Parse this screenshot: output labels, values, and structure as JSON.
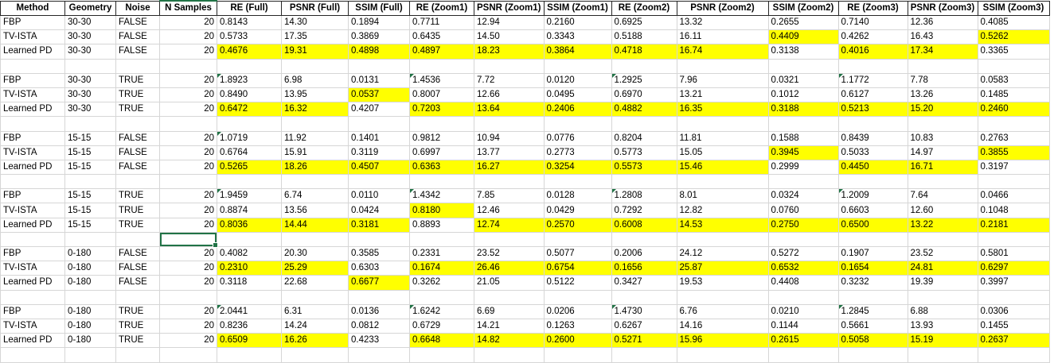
{
  "colors": {
    "highlight": "#FFFF00",
    "selection_green": "#217346",
    "flag_green": "#217346",
    "grid_line": "#D6D6D6",
    "header_border": "#262626"
  },
  "table": {
    "columns": [
      "Method",
      "Geometry",
      "Noise",
      "N Samples",
      "RE (Full)",
      "PSNR (Full)",
      "SSIM (Full)",
      "RE (Zoom1)",
      "PSNR (Zoom1)",
      "SSIM (Zoom1)",
      "RE (Zoom2)",
      "PSNR (Zoom2)",
      "SSIM (Zoom2)",
      "RE (Zoom3)",
      "PSNR (Zoom3)",
      "SSIM (Zoom3)"
    ],
    "header_accent_column": 3,
    "rows": [
      {
        "type": "data",
        "method": "FBP",
        "geometry": "30-30",
        "noise": "FALSE",
        "n_samples": "20",
        "values": [
          "0.8143",
          "14.30",
          "0.1894",
          "0.7711",
          "12.94",
          "0.2160",
          "0.6925",
          "13.32",
          "0.2655",
          "0.7140",
          "12.36",
          "0.4085"
        ],
        "highlights": [],
        "flags": []
      },
      {
        "type": "data",
        "method": "TV-ISTA",
        "geometry": "30-30",
        "noise": "FALSE",
        "n_samples": "20",
        "values": [
          "0.5733",
          "17.35",
          "0.3869",
          "0.6435",
          "14.50",
          "0.3343",
          "0.5188",
          "16.11",
          "0.4409",
          "0.4262",
          "16.43",
          "0.5262"
        ],
        "highlights": [
          8,
          11
        ],
        "flags": []
      },
      {
        "type": "data",
        "method": "Learned PD",
        "geometry": "30-30",
        "noise": "FALSE",
        "n_samples": "20",
        "values": [
          "0.4676",
          "19.31",
          "0.4898",
          "0.4897",
          "18.23",
          "0.3864",
          "0.4718",
          "16.74",
          "0.3138",
          "0.4016",
          "17.34",
          "0.3365"
        ],
        "highlights": [
          0,
          1,
          2,
          3,
          4,
          5,
          6,
          7,
          9,
          10
        ],
        "flags": []
      },
      {
        "type": "blank"
      },
      {
        "type": "data",
        "method": "FBP",
        "geometry": "30-30",
        "noise": "TRUE",
        "n_samples": "20",
        "values": [
          "1.8923",
          "6.98",
          "0.0131",
          "1.4536",
          "7.72",
          "0.0120",
          "1.2925",
          "7.96",
          "0.0321",
          "1.1772",
          "7.78",
          "0.0583"
        ],
        "highlights": [],
        "flags": [
          0,
          3,
          6,
          9
        ]
      },
      {
        "type": "data",
        "method": "TV-ISTA",
        "geometry": "30-30",
        "noise": "TRUE",
        "n_samples": "20",
        "values": [
          "0.8490",
          "13.95",
          "0.0537",
          "0.8007",
          "12.66",
          "0.0495",
          "0.6970",
          "13.21",
          "0.1012",
          "0.6127",
          "13.26",
          "0.1485"
        ],
        "highlights": [
          2
        ],
        "flags": []
      },
      {
        "type": "data",
        "method": "Learned PD",
        "geometry": "30-30",
        "noise": "TRUE",
        "n_samples": "20",
        "values": [
          "0.6472",
          "16.32",
          "0.4207",
          "0.7203",
          "13.64",
          "0.2406",
          "0.4882",
          "16.35",
          "0.3188",
          "0.5213",
          "15.20",
          "0.2460"
        ],
        "highlights": [
          0,
          1,
          3,
          4,
          5,
          6,
          7,
          8,
          9,
          10,
          11
        ],
        "flags": []
      },
      {
        "type": "blank"
      },
      {
        "type": "data",
        "method": "FBP",
        "geometry": "15-15",
        "noise": "FALSE",
        "n_samples": "20",
        "values": [
          "1.0719",
          "11.92",
          "0.1401",
          "0.9812",
          "10.94",
          "0.0776",
          "0.8204",
          "11.81",
          "0.1588",
          "0.8439",
          "10.83",
          "0.2763"
        ],
        "highlights": [],
        "flags": [
          0
        ]
      },
      {
        "type": "data",
        "method": "TV-ISTA",
        "geometry": "15-15",
        "noise": "FALSE",
        "n_samples": "20",
        "values": [
          "0.6764",
          "15.91",
          "0.3119",
          "0.6997",
          "13.77",
          "0.2773",
          "0.5773",
          "15.05",
          "0.3945",
          "0.5033",
          "14.97",
          "0.3855"
        ],
        "highlights": [
          8,
          11
        ],
        "flags": []
      },
      {
        "type": "data",
        "method": "Learned PD",
        "geometry": "15-15",
        "noise": "FALSE",
        "n_samples": "20",
        "values": [
          "0.5265",
          "18.26",
          "0.4507",
          "0.6363",
          "16.27",
          "0.3254",
          "0.5573",
          "15.46",
          "0.2999",
          "0.4450",
          "16.71",
          "0.3197"
        ],
        "highlights": [
          0,
          1,
          2,
          3,
          4,
          5,
          6,
          7,
          9,
          10
        ],
        "flags": []
      },
      {
        "type": "blank"
      },
      {
        "type": "data",
        "method": "FBP",
        "geometry": "15-15",
        "noise": "TRUE",
        "n_samples": "20",
        "values": [
          "1.9459",
          "6.74",
          "0.0110",
          "1.4342",
          "7.85",
          "0.0128",
          "1.2808",
          "8.01",
          "0.0324",
          "1.2009",
          "7.64",
          "0.0466"
        ],
        "highlights": [],
        "flags": [
          0,
          3,
          6,
          9
        ]
      },
      {
        "type": "data",
        "method": "TV-ISTA",
        "geometry": "15-15",
        "noise": "TRUE",
        "n_samples": "20",
        "values": [
          "0.8874",
          "13.56",
          "0.0424",
          "0.8180",
          "12.46",
          "0.0429",
          "0.7292",
          "12.82",
          "0.0760",
          "0.6603",
          "12.60",
          "0.1048"
        ],
        "highlights": [
          3
        ],
        "flags": []
      },
      {
        "type": "data",
        "method": "Learned PD",
        "geometry": "15-15",
        "noise": "TRUE",
        "n_samples": "20",
        "values": [
          "0.8036",
          "14.44",
          "0.3181",
          "0.8893",
          "12.74",
          "0.2570",
          "0.6008",
          "14.53",
          "0.2750",
          "0.6500",
          "13.22",
          "0.2181"
        ],
        "highlights": [
          0,
          1,
          2,
          4,
          5,
          6,
          7,
          8,
          9,
          10,
          11
        ],
        "flags": []
      },
      {
        "type": "blank",
        "selected_cell_col": 3
      },
      {
        "type": "data",
        "method": "FBP",
        "geometry": "0-180",
        "noise": "FALSE",
        "n_samples": "20",
        "values": [
          "0.4082",
          "20.30",
          "0.3585",
          "0.2331",
          "23.52",
          "0.5077",
          "0.2006",
          "24.12",
          "0.5272",
          "0.1907",
          "23.52",
          "0.5801"
        ],
        "highlights": [],
        "flags": []
      },
      {
        "type": "data",
        "method": "TV-ISTA",
        "geometry": "0-180",
        "noise": "FALSE",
        "n_samples": "20",
        "values": [
          "0.2310",
          "25.29",
          "0.6303",
          "0.1674",
          "26.46",
          "0.6754",
          "0.1656",
          "25.87",
          "0.6532",
          "0.1654",
          "24.81",
          "0.6297"
        ],
        "highlights": [
          0,
          1,
          3,
          4,
          5,
          6,
          7,
          8,
          9,
          10,
          11
        ],
        "flags": []
      },
      {
        "type": "data",
        "method": "Learned PD",
        "geometry": "0-180",
        "noise": "FALSE",
        "n_samples": "20",
        "values": [
          "0.3118",
          "22.68",
          "0.6677",
          "0.3262",
          "21.05",
          "0.5122",
          "0.3427",
          "19.53",
          "0.4408",
          "0.3232",
          "19.39",
          "0.3997"
        ],
        "highlights": [
          2
        ],
        "flags": []
      },
      {
        "type": "blank"
      },
      {
        "type": "data",
        "method": "FBP",
        "geometry": "0-180",
        "noise": "TRUE",
        "n_samples": "20",
        "values": [
          "2.0441",
          "6.31",
          "0.0136",
          "1.6242",
          "6.69",
          "0.0206",
          "1.4730",
          "6.76",
          "0.0210",
          "1.2845",
          "6.88",
          "0.0306"
        ],
        "highlights": [],
        "flags": [
          0,
          3,
          6,
          9
        ]
      },
      {
        "type": "data",
        "method": "TV-ISTA",
        "geometry": "0-180",
        "noise": "TRUE",
        "n_samples": "20",
        "values": [
          "0.8236",
          "14.24",
          "0.0812",
          "0.6729",
          "14.21",
          "0.1263",
          "0.6267",
          "14.16",
          "0.1144",
          "0.5661",
          "13.93",
          "0.1455"
        ],
        "highlights": [],
        "flags": []
      },
      {
        "type": "data",
        "method": "Learned PD",
        "geometry": "0-180",
        "noise": "TRUE",
        "n_samples": "20",
        "values": [
          "0.6509",
          "16.26",
          "0.4233",
          "0.6648",
          "14.82",
          "0.2600",
          "0.5271",
          "15.96",
          "0.2615",
          "0.5058",
          "15.19",
          "0.2637"
        ],
        "highlights": [
          0,
          1,
          3,
          4,
          5,
          6,
          7,
          8,
          9,
          10,
          11
        ],
        "flags": []
      },
      {
        "type": "blank"
      }
    ]
  }
}
